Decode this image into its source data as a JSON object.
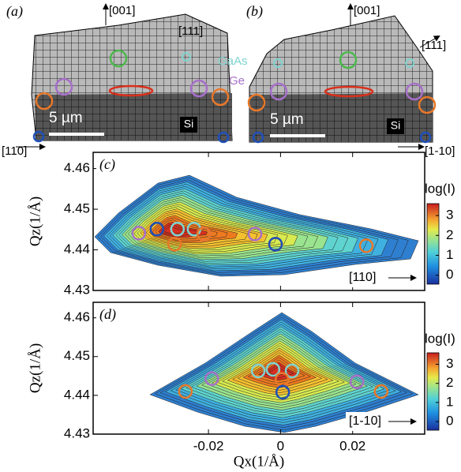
{
  "figure": {
    "panels": [
      {
        "label": "(a)",
        "direction_top": "[001]",
        "direction_diag": "[111]",
        "direction_bottom": "[110]",
        "scale_bar": "5 µm",
        "material": "Si"
      },
      {
        "label": "(b)",
        "direction_top": "[001]",
        "direction_diag": "[111]",
        "direction_bottom": "[1-10]",
        "scale_bar": "5 µm",
        "material": "Si"
      }
    ],
    "legend": [
      {
        "name": "GaAs",
        "color": "#7fd3cf"
      },
      {
        "name": "Ge",
        "color": "#a66fc9"
      }
    ]
  },
  "chart_data": [
    {
      "type": "contour",
      "label": "(c)",
      "ylabel": "Qz(1/Å)",
      "colorbar_title": "log(I)",
      "direction": "[110]",
      "xlim": [
        -0.052,
        0.04
      ],
      "ylim": [
        4.43,
        4.464
      ],
      "yticks": [
        4.43,
        4.44,
        4.45,
        4.46
      ],
      "xticks": [
        -0.02,
        0,
        0.02
      ],
      "show_xtick_labels": false,
      "clim": [
        -0.45,
        3.6
      ],
      "colorbar_ticks": [
        0,
        1,
        2,
        3
      ],
      "markers": {
        "x": [
          -0.0393,
          -0.0343,
          -0.0286,
          -0.024,
          -0.0294,
          -0.0213,
          -0.0213,
          -0.0071,
          -0.0014,
          -0.0014,
          0.0238
        ],
        "y": [
          4.4441,
          4.4451,
          4.4451,
          4.4451,
          4.4414,
          4.4439,
          4.4439,
          4.4439,
          4.4414,
          4.4414,
          4.441
        ],
        "colors": [
          "#a66fc9",
          "#1f4fb8",
          "#7fd3cf",
          "#7fd3cf",
          "#e8782a",
          "#a66fc9",
          "#e8782a",
          "#a66fc9",
          "#e8782a",
          "#1f4fb8",
          "#e8782a"
        ]
      }
    },
    {
      "type": "contour",
      "label": "(d)",
      "ylabel": "Qz(1/Å)",
      "xlabel": "Qx(1/Å)",
      "colorbar_title": "log(I)",
      "direction": "[1-10]",
      "xlim": [
        -0.052,
        0.04
      ],
      "ylim": [
        4.43,
        4.464
      ],
      "yticks": [
        4.43,
        4.44,
        4.45,
        4.46
      ],
      "xticks": [
        -0.02,
        0,
        0.02
      ],
      "show_xtick_labels": true,
      "clim": [
        -0.45,
        3.6
      ],
      "colorbar_ticks": [
        0,
        1,
        2,
        3
      ],
      "markers": {
        "x": [
          -0.0264,
          -0.0191,
          -0.0062,
          -0.0021,
          0.0032,
          0.0004,
          0.0006,
          0.0212,
          0.0279
        ],
        "y": [
          4.441,
          4.4443,
          4.4463,
          4.4467,
          4.4463,
          4.4441,
          4.4408,
          4.4435,
          4.441
        ],
        "colors": [
          "#e8782a",
          "#a66fc9",
          "#7fd3cf",
          "#7fd3cf",
          "#7fd3cf",
          "#e8782a",
          "#1f4fb8",
          "#a66fc9",
          "#e8782a"
        ]
      }
    }
  ]
}
